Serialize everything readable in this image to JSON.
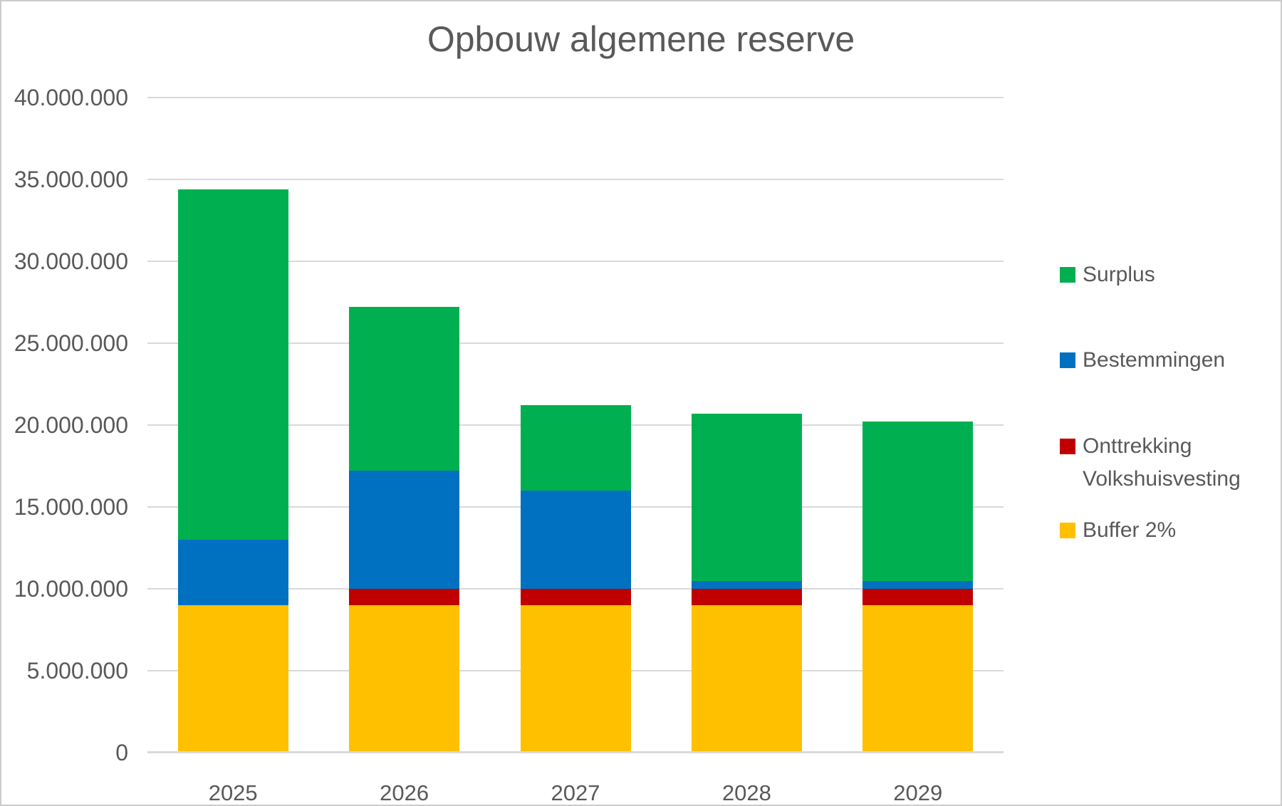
{
  "chart_data": {
    "type": "bar",
    "stacked": true,
    "title": "Opbouw algemene reserve",
    "categories": [
      "2025",
      "2026",
      "2027",
      "2028",
      "2029"
    ],
    "series": [
      {
        "name": "Buffer 2%",
        "color": "#FFC000",
        "values": [
          9000000,
          9000000,
          9000000,
          9000000,
          9000000
        ]
      },
      {
        "name": "Onttrekking Volkshuisvesting",
        "color": "#C00000",
        "values": [
          0,
          1000000,
          1000000,
          1000000,
          1000000
        ]
      },
      {
        "name": "Bestemmingen",
        "color": "#0070C0",
        "values": [
          4000000,
          7200000,
          6000000,
          500000,
          500000
        ]
      },
      {
        "name": "Surplus",
        "color": "#00B050",
        "values": [
          21400000,
          10000000,
          5200000,
          10200000,
          9700000
        ]
      }
    ],
    "stack_totals": [
      34400000,
      27200000,
      21200000,
      20700000,
      20200000
    ],
    "xlabel": "",
    "ylabel": "",
    "ylim": [
      0,
      40000000
    ],
    "ytick_interval": 5000000,
    "ytick_labels": [
      "0",
      "5.000.000",
      "10.000.000",
      "15.000.000",
      "20.000.000",
      "25.000.000",
      "30.000.000",
      "35.000.000",
      "40.000.000"
    ],
    "grid": true,
    "legend_position": "right",
    "legend": [
      {
        "label": "Surplus",
        "color": "#00B050"
      },
      {
        "label": "Bestemmingen",
        "color": "#0070C0"
      },
      {
        "label": "Onttrekking Volkshuisvesting",
        "color": "#C00000"
      },
      {
        "label": "Buffer 2%",
        "color": "#FFC000"
      }
    ]
  },
  "colors": {
    "text": "#595959",
    "gridline": "#D9D9D9",
    "background": "#FFFFFF",
    "frame_border": "#CCCCCC"
  }
}
